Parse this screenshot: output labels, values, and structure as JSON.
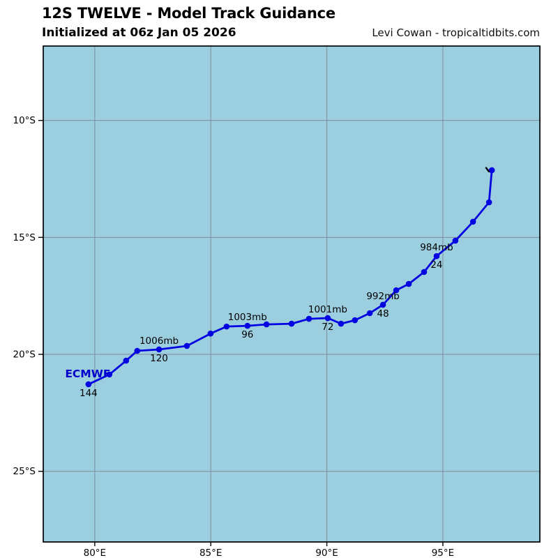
{
  "header": {
    "title": "12S TWELVE - Model Track Guidance",
    "subtitle": "Initialized at 06z Jan 05 2026",
    "credit": "Levi Cowan - tropicaltidbits.com"
  },
  "chart_data": {
    "type": "line",
    "title": "12S TWELVE - Model Track Guidance",
    "map": {
      "ocean_color": "#9bcfe0",
      "grid_color": "#7d8d98",
      "border_color": "#000000",
      "text_color": "#000000"
    },
    "x_axis": {
      "range_deg_e": [
        77.78,
        99.18
      ],
      "ticks": [
        {
          "value": 80,
          "label": "80°E"
        },
        {
          "value": 85,
          "label": "85°E"
        },
        {
          "value": 90,
          "label": "90°E"
        },
        {
          "value": 95,
          "label": "95°E"
        }
      ]
    },
    "y_axis": {
      "range_deg_s": [
        6.82,
        28.02
      ],
      "ticks": [
        {
          "value": 10,
          "label": "10°S"
        },
        {
          "value": 15,
          "label": "15°S"
        },
        {
          "value": 20,
          "label": "20°S"
        },
        {
          "value": 25,
          "label": "25°S"
        }
      ]
    },
    "series": [
      {
        "name": "ECMWF",
        "color": "#0404e0",
        "label_color": "#0000cc",
        "label_pos": {
          "lon": 79.7,
          "lat_s": 20.84
        },
        "points": [
          {
            "hour": 0,
            "lon": 97.11,
            "lat_s": 12.13
          },
          {
            "hour": 6,
            "lon": 96.99,
            "lat_s": 13.5
          },
          {
            "hour": 12,
            "lon": 96.3,
            "lat_s": 14.33
          },
          {
            "hour": 18,
            "lon": 95.54,
            "lat_s": 15.14
          },
          {
            "hour": 24,
            "lon": 94.73,
            "lat_s": 15.8,
            "pressure": "984mb"
          },
          {
            "hour": 30,
            "lon": 94.19,
            "lat_s": 16.48
          },
          {
            "hour": 36,
            "lon": 93.53,
            "lat_s": 16.99
          },
          {
            "hour": 42,
            "lon": 92.99,
            "lat_s": 17.26
          },
          {
            "hour": 48,
            "lon": 92.42,
            "lat_s": 17.88,
            "pressure": "992mb"
          },
          {
            "hour": 54,
            "lon": 91.85,
            "lat_s": 18.24
          },
          {
            "hour": 60,
            "lon": 91.21,
            "lat_s": 18.54
          },
          {
            "hour": 66,
            "lon": 90.61,
            "lat_s": 18.69
          },
          {
            "hour": 72,
            "lon": 90.04,
            "lat_s": 18.45,
            "pressure": "1001mb"
          },
          {
            "hour": 78,
            "lon": 89.23,
            "lat_s": 18.48
          },
          {
            "hour": 84,
            "lon": 88.48,
            "lat_s": 18.69
          },
          {
            "hour": 90,
            "lon": 87.4,
            "lat_s": 18.72
          },
          {
            "hour": 96,
            "lon": 86.58,
            "lat_s": 18.78,
            "pressure": "1003mb"
          },
          {
            "hour": 102,
            "lon": 85.68,
            "lat_s": 18.81
          },
          {
            "hour": 108,
            "lon": 84.99,
            "lat_s": 19.11
          },
          {
            "hour": 114,
            "lon": 83.97,
            "lat_s": 19.64
          },
          {
            "hour": 120,
            "lon": 82.77,
            "lat_s": 19.79,
            "pressure": "1006mb"
          },
          {
            "hour": 126,
            "lon": 81.83,
            "lat_s": 19.85
          },
          {
            "hour": 132,
            "lon": 81.35,
            "lat_s": 20.27
          },
          {
            "hour": 138,
            "lon": 80.63,
            "lat_s": 20.86
          },
          {
            "hour": 144,
            "lon": 79.73,
            "lat_s": 21.28
          }
        ],
        "labeled_hours": [
          24,
          48,
          72,
          96,
          120,
          144
        ]
      }
    ],
    "analysis_marker": {
      "lon": 96.93,
      "lat_s": 12.12
    }
  }
}
